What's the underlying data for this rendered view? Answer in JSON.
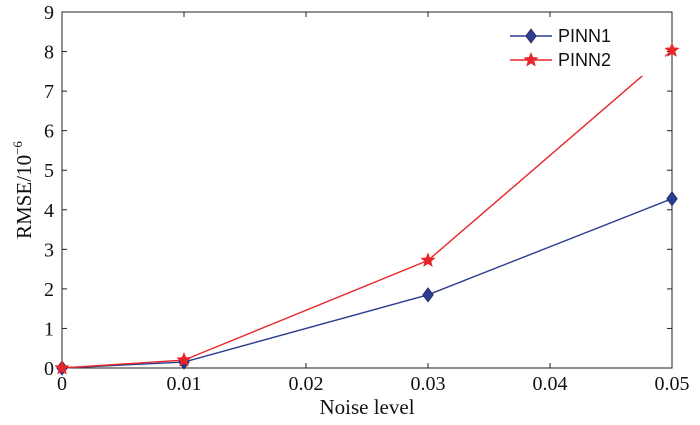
{
  "chart_data": {
    "type": "line",
    "xlabel": "Noise level",
    "ylabel": "RMSE/10",
    "ylabel_exponent": "−6",
    "xlim": [
      0,
      0.05
    ],
    "ylim": [
      0,
      9
    ],
    "x_ticks": [
      "0",
      "0.01",
      "0.02",
      "0.03",
      "0.04",
      "0.05"
    ],
    "y_ticks": [
      "0",
      "1",
      "2",
      "3",
      "4",
      "5",
      "6",
      "7",
      "8",
      "9"
    ],
    "grid": false,
    "legend_position": "top-right",
    "x": [
      0,
      0.01,
      0.03,
      0.05
    ],
    "series": [
      {
        "name": "PINN1",
        "values": [
          0.0,
          0.15,
          1.85,
          4.28
        ],
        "color": "#2e3d8f",
        "marker": "diamond"
      },
      {
        "name": "PINN2",
        "values": [
          0.0,
          0.2,
          2.72,
          8.03
        ],
        "color": "#e8262a",
        "marker": "star"
      }
    ]
  }
}
